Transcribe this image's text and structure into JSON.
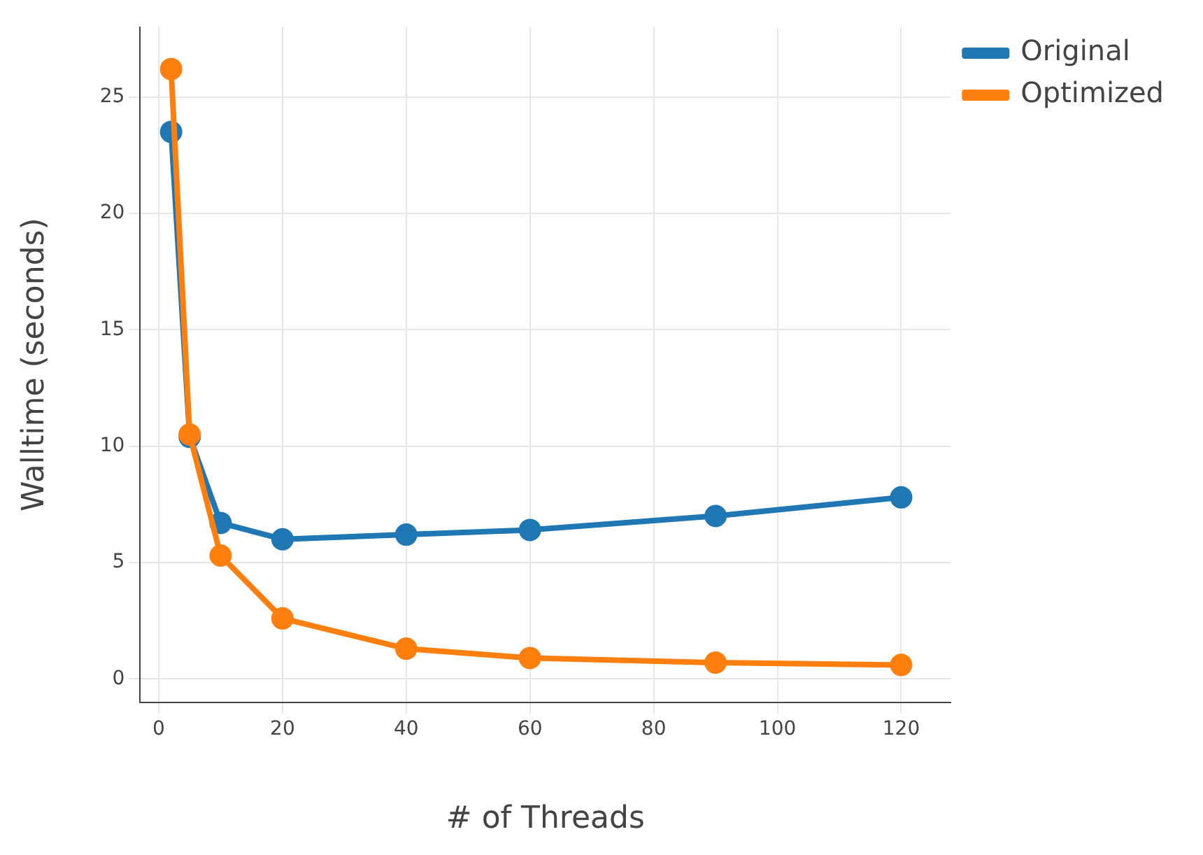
{
  "chart_data": {
    "type": "line",
    "xlabel": "# of Threads",
    "ylabel": "Walltime (seconds)",
    "x": [
      2,
      5,
      10,
      20,
      40,
      60,
      90,
      120
    ],
    "series": [
      {
        "name": "Original",
        "color": "#1f77b4",
        "values": [
          23.5,
          10.4,
          6.7,
          6.0,
          6.2,
          6.4,
          7.0,
          7.8
        ]
      },
      {
        "name": "Optimized",
        "color": "#ff7f0e",
        "values": [
          26.2,
          10.5,
          5.3,
          2.6,
          1.3,
          0.9,
          0.7,
          0.6
        ]
      }
    ],
    "xlim": [
      -3,
      128
    ],
    "xticks": [
      0,
      20,
      40,
      60,
      80,
      100,
      120
    ],
    "ylim": [
      -1,
      28
    ],
    "yticks": [
      0,
      5,
      10,
      15,
      20,
      25
    ],
    "grid": true,
    "legend": "top right",
    "marker": "circle",
    "line_style": "solid"
  }
}
